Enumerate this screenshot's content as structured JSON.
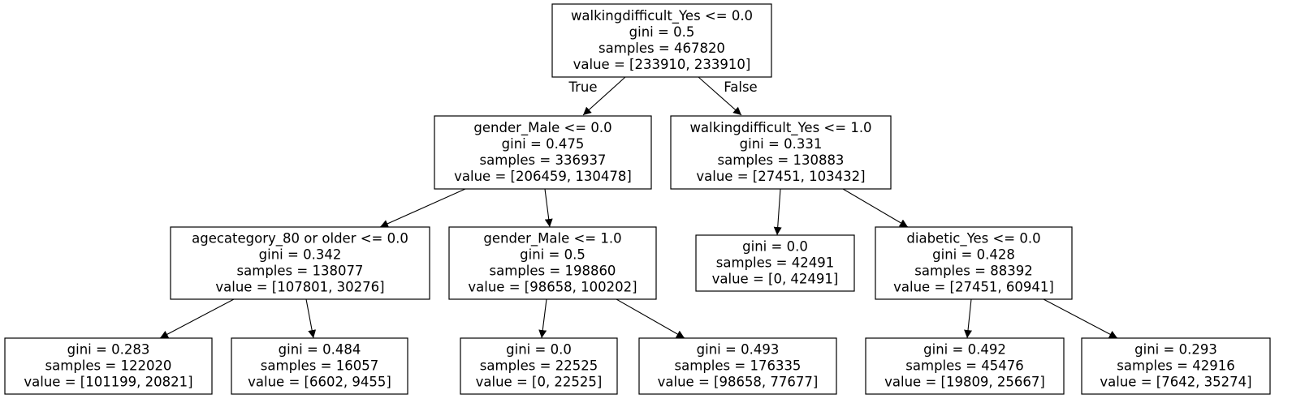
{
  "nodes": [
    {
      "id": "n0",
      "lines": [
        "walkingdifficult_Yes <= 0.0",
        "gini = 0.5",
        "samples = 467820",
        "value = [233910, 233910]"
      ]
    },
    {
      "id": "n1",
      "lines": [
        "gender_Male <= 0.0",
        "gini = 0.475",
        "samples = 336937",
        "value = [206459, 130478]"
      ]
    },
    {
      "id": "n2",
      "lines": [
        "walkingdifficult_Yes <= 1.0",
        "gini = 0.331",
        "samples = 130883",
        "value = [27451, 103432]"
      ]
    },
    {
      "id": "n3",
      "lines": [
        "agecategory_80 or older <= 0.0",
        "gini = 0.342",
        "samples = 138077",
        "value = [107801, 30276]"
      ]
    },
    {
      "id": "n4",
      "lines": [
        "gender_Male <= 1.0",
        "gini = 0.5",
        "samples = 198860",
        "value = [98658, 100202]"
      ]
    },
    {
      "id": "n5",
      "lines": [
        "gini = 0.0",
        "samples = 42491",
        "value = [0, 42491]"
      ]
    },
    {
      "id": "n6",
      "lines": [
        "diabetic_Yes <= 0.0",
        "gini = 0.428",
        "samples = 88392",
        "value = [27451, 60941]"
      ]
    },
    {
      "id": "n7",
      "lines": [
        "gini = 0.283",
        "samples = 122020",
        "value = [101199, 20821]"
      ]
    },
    {
      "id": "n8",
      "lines": [
        "gini = 0.484",
        "samples = 16057",
        "value = [6602, 9455]"
      ]
    },
    {
      "id": "n9",
      "lines": [
        "gini = 0.0",
        "samples = 22525",
        "value = [0, 22525]"
      ]
    },
    {
      "id": "n10",
      "lines": [
        "gini = 0.493",
        "samples = 176335",
        "value = [98658, 77677]"
      ]
    },
    {
      "id": "n11",
      "lines": [
        "gini = 0.492",
        "samples = 45476",
        "value = [19809, 25667]"
      ]
    },
    {
      "id": "n12",
      "lines": [
        "gini = 0.293",
        "samples = 42916",
        "value = [7642, 35274]"
      ]
    }
  ],
  "edges": [
    {
      "from": "n0",
      "to": "n1",
      "label": "True"
    },
    {
      "from": "n0",
      "to": "n2",
      "label": "False"
    },
    {
      "from": "n1",
      "to": "n3"
    },
    {
      "from": "n1",
      "to": "n4"
    },
    {
      "from": "n2",
      "to": "n5"
    },
    {
      "from": "n2",
      "to": "n6"
    },
    {
      "from": "n3",
      "to": "n7"
    },
    {
      "from": "n3",
      "to": "n8"
    },
    {
      "from": "n4",
      "to": "n9"
    },
    {
      "from": "n4",
      "to": "n10"
    },
    {
      "from": "n6",
      "to": "n11"
    },
    {
      "from": "n6",
      "to": "n12"
    }
  ]
}
